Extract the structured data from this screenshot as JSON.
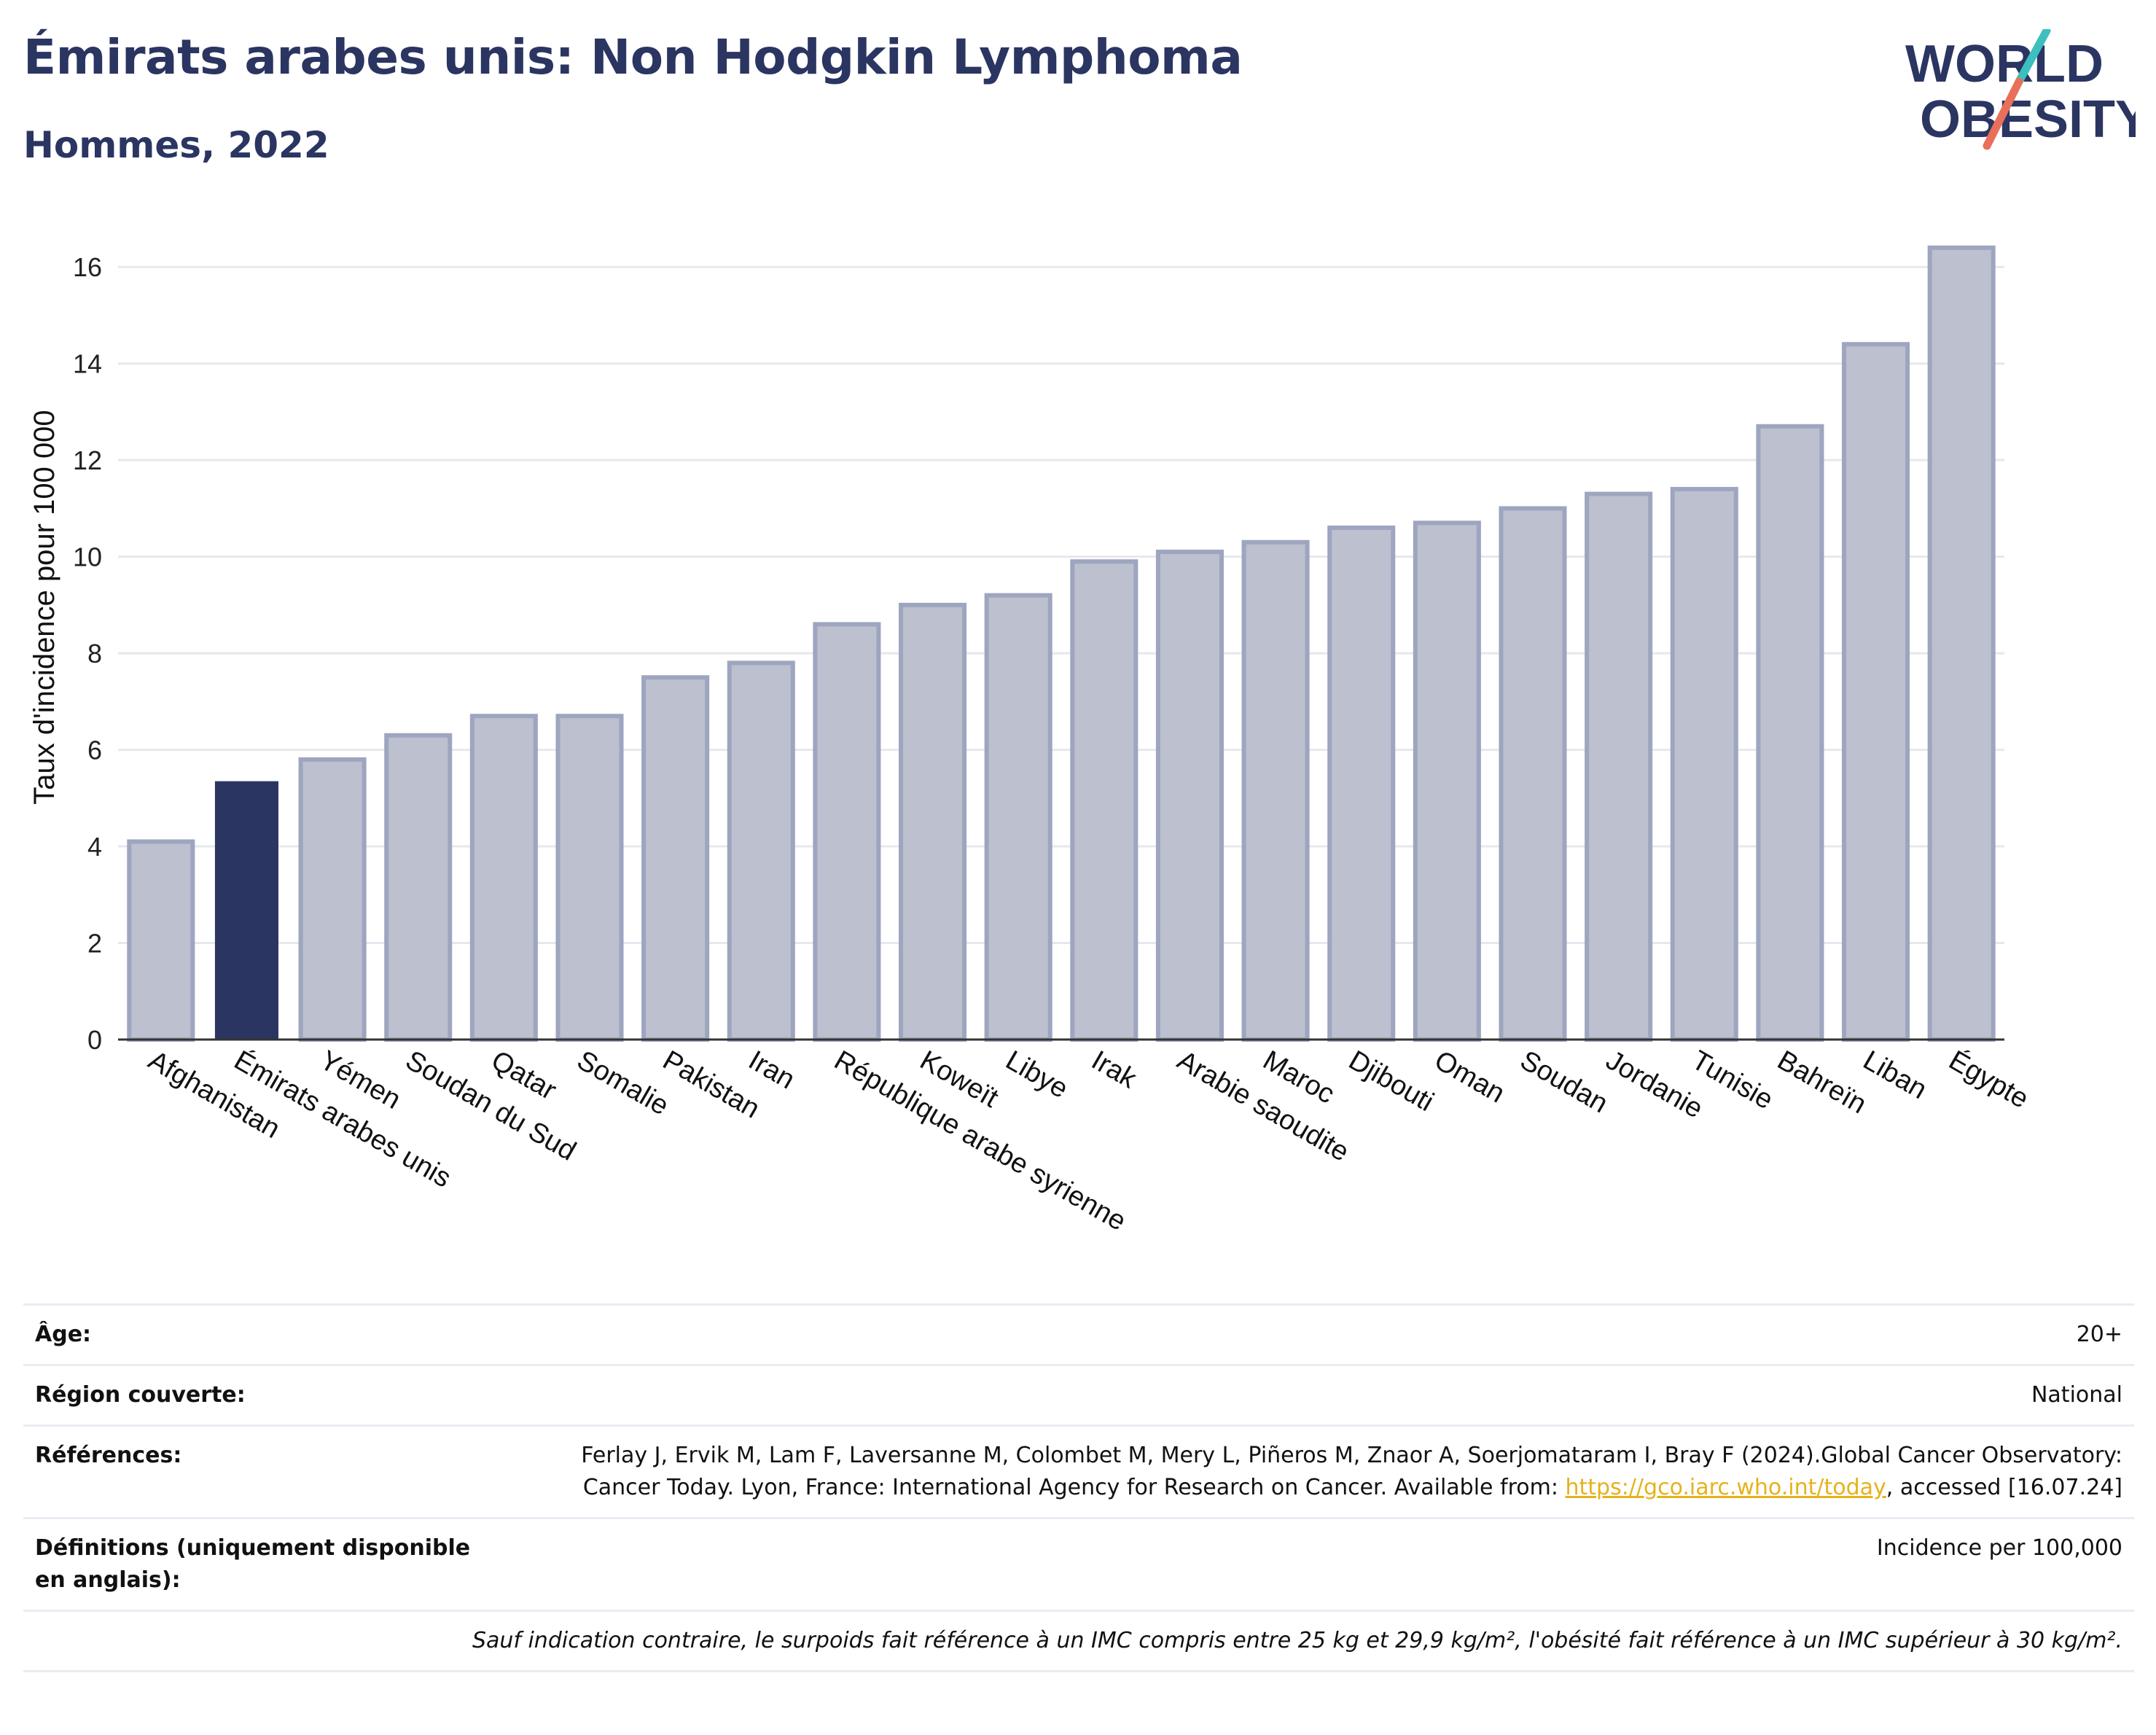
{
  "header": {
    "title": "Émirats arabes unis: Non Hodgkin Lymphoma",
    "subtitle": "Hommes, 2022"
  },
  "logo": {
    "line1": "WORLD",
    "line2": "OBESITY",
    "colors": {
      "text": "#2b3561",
      "teal": "#3cbfbf",
      "coral": "#e8705a"
    }
  },
  "chart_data": {
    "type": "bar",
    "categories": [
      "Afghanistan",
      "Émirats arabes unis",
      "Yémen",
      "Soudan du Sud",
      "Qatar",
      "Somalie",
      "Pakistan",
      "Iran",
      "République arabe syrienne",
      "Koweït",
      "Libye",
      "Irak",
      "Arabie saoudite",
      "Maroc",
      "Djibouti",
      "Oman",
      "Soudan",
      "Jordanie",
      "Tunisie",
      "Bahreïn",
      "Liban",
      "Égypte"
    ],
    "values": [
      4.1,
      5.35,
      5.8,
      6.3,
      6.7,
      6.7,
      7.5,
      7.8,
      8.6,
      9.0,
      9.2,
      9.9,
      10.1,
      10.3,
      10.6,
      10.7,
      11.0,
      11.3,
      11.4,
      12.7,
      14.4,
      16.4
    ],
    "highlight": "Émirats arabes unis",
    "ylabel": "Taux d'incidence pour 100 000",
    "ylim": [
      0,
      17
    ],
    "yticks": [
      0,
      2,
      4,
      6,
      8,
      10,
      12,
      14,
      16
    ],
    "grid": true,
    "colors": {
      "bar": "#bcc0cf",
      "bar_edge": "#9ea5bf",
      "highlight": "#2b3561",
      "grid": "#e6e8ee",
      "axis": "#333333"
    }
  },
  "info": {
    "age_label": "Âge:",
    "age_value": "20+",
    "region_label": "Région couverte:",
    "region_value": "National",
    "refs_label": "Références:",
    "refs_text_1": "Ferlay J, Ervik M, Lam F, Laversanne M, Colombet M, Mery L, Piñeros M, Znaor A, Soerjomataram I, Bray F (2024).Global Cancer Observatory: Cancer Today. Lyon, France: International Agency for Research on Cancer. Available from: ",
    "refs_link": "https://gco.iarc.who.int/today",
    "refs_text_2": ", accessed [16.07.24]",
    "defs_label": "Définitions (uniquement disponible en anglais):",
    "defs_value": "Incidence per 100,000",
    "footnote": "Sauf indication contraire, le surpoids fait référence à un IMC compris entre 25 kg et 29,9 kg/m², l'obésité fait référence à un IMC supérieur à 30 kg/m²."
  }
}
